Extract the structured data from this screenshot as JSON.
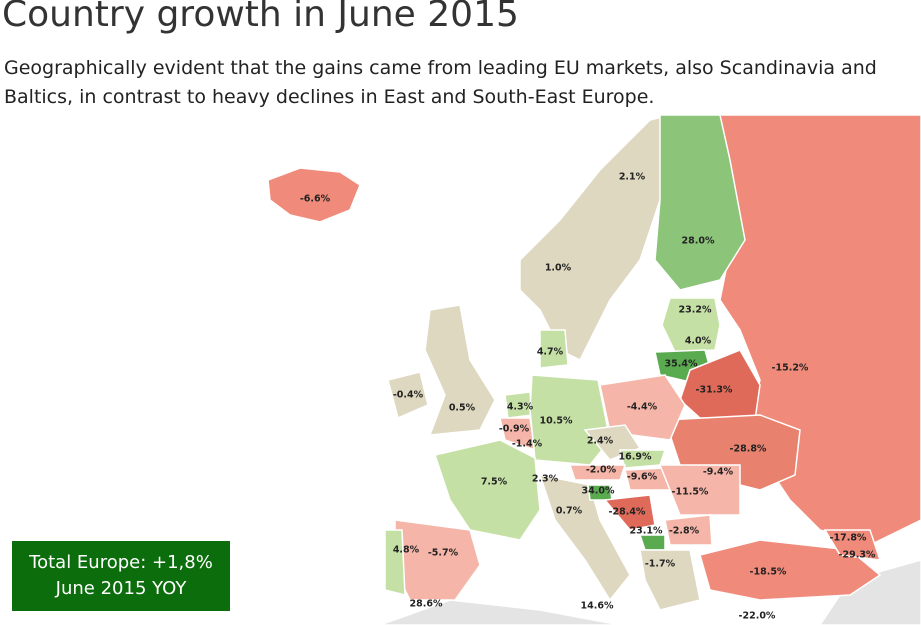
{
  "title": "Country growth in June 2015",
  "subtitle": "Geographically evident that the gains came from leading EU markets, also Scandinavia and Baltics, in contrast to heavy declines in East and South-East Europe.",
  "map": {
    "labels": [
      "-6.6%",
      "2.1%",
      "28.0%",
      "1.0%",
      "23.2%",
      "4.0%",
      "4.7%",
      "35.4%",
      "-15.2%",
      "-31.3%",
      "-0.4%",
      "0.5%",
      "4.3%",
      "10.5%",
      "-4.4%",
      "-0.9%",
      "-1.4%",
      "2.4%",
      "-28.8%",
      "16.9%",
      "-2.0%",
      "-9.6%",
      "-9.4%",
      "7.5%",
      "2.3%",
      "34.0%",
      "-11.5%",
      "0.7%",
      "-28.4%",
      "23.1%",
      "-2.8%",
      "-17.8%",
      "-29.3%",
      "4.8%",
      "-5.7%",
      "-1.7%",
      "-18.5%",
      "28.6%",
      "14.6%",
      "-22.0%"
    ]
  },
  "total_box": {
    "line1": "Total Europe: +1,8%",
    "line2": "June 2015 YOY"
  }
}
